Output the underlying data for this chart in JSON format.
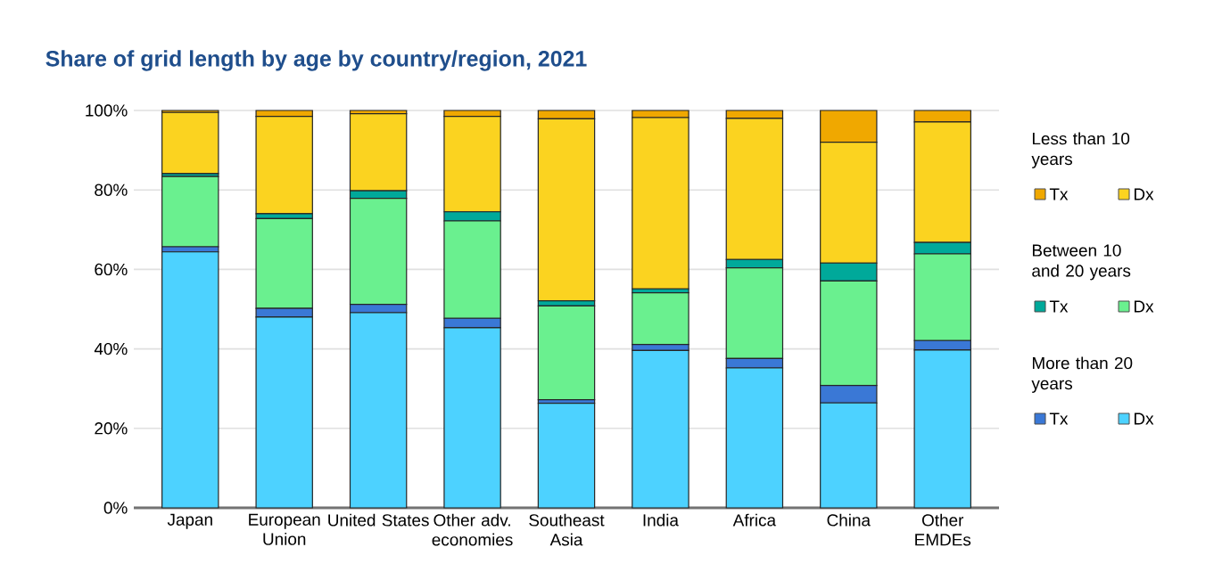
{
  "chart_data": {
    "type": "bar",
    "stacked": true,
    "title": "Share of grid length by age by country/region, 2021",
    "categories": [
      "Japan",
      "European Union",
      "United States",
      "Other adv. economies",
      "Southeast Asia",
      "India",
      "Africa",
      "China",
      "Other EMDEs"
    ],
    "series": [
      {
        "name": "Dx",
        "color": "#4dd2ff",
        "values": [
          64.4,
          48.0,
          49.1,
          45.3,
          26.3,
          39.6,
          35.2,
          26.4,
          39.7
        ]
      },
      {
        "name": "Tx",
        "color": "#3a78d6",
        "values": [
          1.3,
          2.2,
          2.1,
          2.4,
          0.9,
          1.5,
          2.4,
          4.4,
          2.4
        ]
      },
      {
        "name": "Dx",
        "color": "#6af08f",
        "values": [
          17.7,
          22.6,
          26.7,
          24.5,
          23.6,
          13.0,
          22.8,
          26.3,
          21.8
        ]
      },
      {
        "name": "Tx",
        "color": "#00a99a",
        "values": [
          0.7,
          1.2,
          1.9,
          2.3,
          1.3,
          1.0,
          2.1,
          4.5,
          2.9
        ]
      },
      {
        "name": "Dx",
        "color": "#fbd320",
        "values": [
          15.4,
          24.5,
          19.4,
          24.0,
          45.8,
          43.1,
          35.5,
          30.4,
          30.3
        ]
      },
      {
        "name": "Tx",
        "color": "#f0a800",
        "values": [
          0.5,
          1.5,
          0.8,
          1.5,
          2.1,
          1.8,
          2.0,
          8.0,
          2.9
        ]
      }
    ],
    "annotations": [
      "Less than 10 years",
      "Between 10 and 20 years",
      "More than 20 years"
    ],
    "ylim": [
      0,
      100
    ],
    "yticks": [
      {
        "value": 0,
        "label": "0%"
      },
      {
        "value": 20,
        "label": "20%"
      },
      {
        "value": 40,
        "label": "40%"
      },
      {
        "value": 60,
        "label": "60%"
      },
      {
        "value": 80,
        "label": "80%"
      },
      {
        "value": 100,
        "label": "100%"
      }
    ],
    "grid": "y",
    "legend": "right"
  }
}
